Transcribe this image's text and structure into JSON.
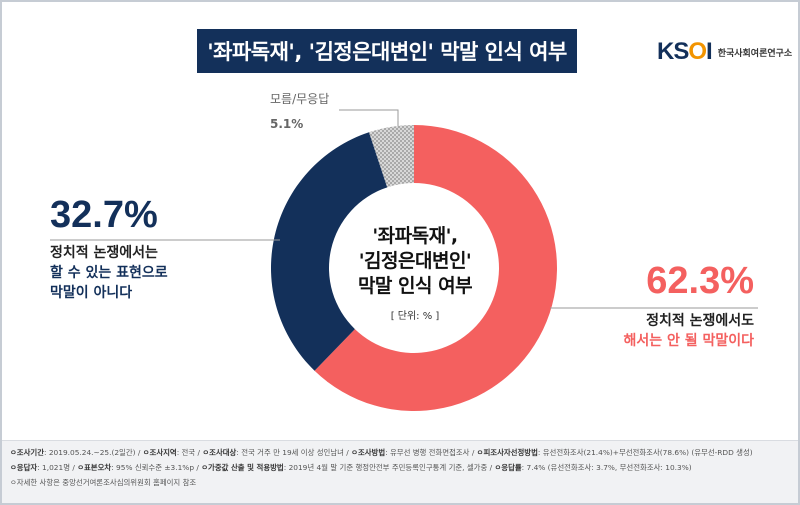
{
  "title": "'좌파독재', '김정은대변인' 막말 인식 여부",
  "logo": {
    "mark_a": "KS",
    "mark_o": "O",
    "mark_b": "I",
    "name": "한국사회여론연구소"
  },
  "chart_data": {
    "type": "pie",
    "variant": "donut",
    "center_text": [
      "'좌파독재',",
      "'김정은대변인'",
      "막말 인식 여부"
    ],
    "unit_label": "[ 단위: % ]",
    "slices": [
      {
        "value": 62.3,
        "label": "62.3%",
        "desc": [
          "정치적 논쟁에서도",
          "해서는 안 될 막말이다"
        ],
        "color": "#f4605f"
      },
      {
        "value": 32.7,
        "label": "32.7%",
        "desc": [
          "정치적 논쟁에서는",
          "할 수 있는 표현으로",
          "막말이 아니다"
        ],
        "color": "#13305a"
      },
      {
        "value": 5.1,
        "label": "5.1%",
        "desc": [
          "모름/무응답"
        ],
        "color": "#bdbdbd"
      }
    ]
  },
  "footer": {
    "line1": [
      {
        "k": "조사기간",
        "v": ": 2019.05.24.~25.(2일간) / "
      },
      {
        "k": "조사지역",
        "v": ": 전국 / "
      },
      {
        "k": "조사대상",
        "v": ": 전국 거주 만 19세 이상 성인남녀 / "
      },
      {
        "k": "조사방법",
        "v": ": 유무선 병행 전화면접조사 / "
      },
      {
        "k": "피조사자선정방법",
        "v": ": 유선전화조사(21.4%)+무선전화조사(78.6%) (유무선-RDD 생성)"
      }
    ],
    "line2": [
      {
        "k": "응답자",
        "v": ": 1,021명 / "
      },
      {
        "k": "표본오차",
        "v": ": 95% 신뢰수준 ±3.1%p / "
      },
      {
        "k": "가중값 산출 및 적용방법",
        "v": ": 2019년 4월 말 기준 행정안전부 주민등록인구통계 기준, 셀가중 / "
      },
      {
        "k": "응답률",
        "v": ": 7.4% (유선전화조사: 3.7%, 무선전화조사: 10.3%)"
      }
    ],
    "line3": "ㅇ자세한 사항은 중앙선거여론조사심의위원회 홈페이지 참조"
  }
}
